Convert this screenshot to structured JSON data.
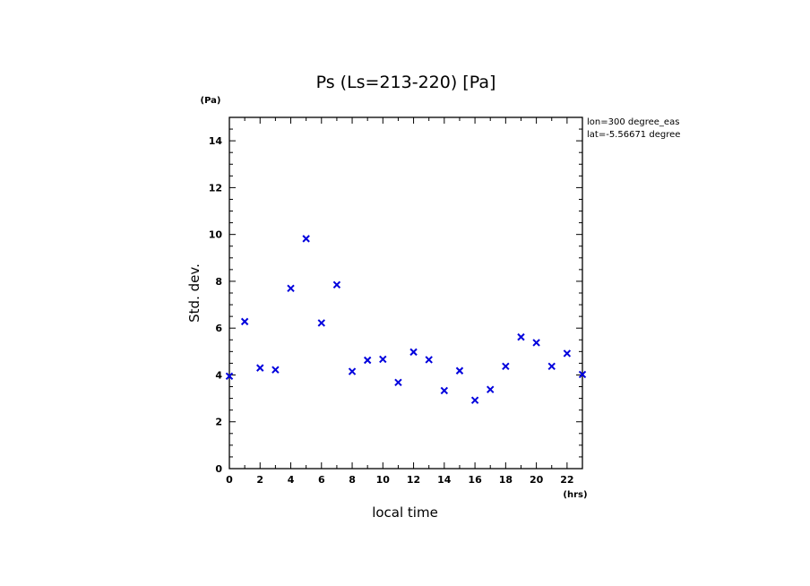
{
  "chart_data": {
    "type": "scatter",
    "title": "Ps (Ls=213-220) [Pa]",
    "xlabel": "local time",
    "ylabel": "Std. dev.",
    "x_unit": "(hrs)",
    "y_unit": "(Pa)",
    "xlim": [
      0,
      23
    ],
    "ylim": [
      0,
      15
    ],
    "x_ticks": [
      0,
      2,
      4,
      6,
      8,
      10,
      12,
      14,
      16,
      18,
      20,
      22
    ],
    "y_ticks": [
      0,
      2,
      4,
      6,
      8,
      10,
      12,
      14
    ],
    "marker": "x",
    "marker_color": "#0000dd",
    "info_lines": [
      "lon=300 degree_eas",
      "lat=-5.56671 degree"
    ],
    "series": [
      {
        "x": [
          0,
          1,
          2,
          3,
          4,
          5,
          6,
          7,
          8,
          9,
          10,
          11,
          12,
          13,
          14,
          15,
          16,
          17,
          18,
          19,
          20,
          21,
          22,
          23
        ],
        "y": [
          3.95,
          6.28,
          4.3,
          4.22,
          7.7,
          9.82,
          6.22,
          7.85,
          4.15,
          4.63,
          4.67,
          3.68,
          4.98,
          4.65,
          3.33,
          4.18,
          2.92,
          3.38,
          4.37,
          5.62,
          5.38,
          4.37,
          4.92,
          4.02
        ]
      }
    ]
  }
}
